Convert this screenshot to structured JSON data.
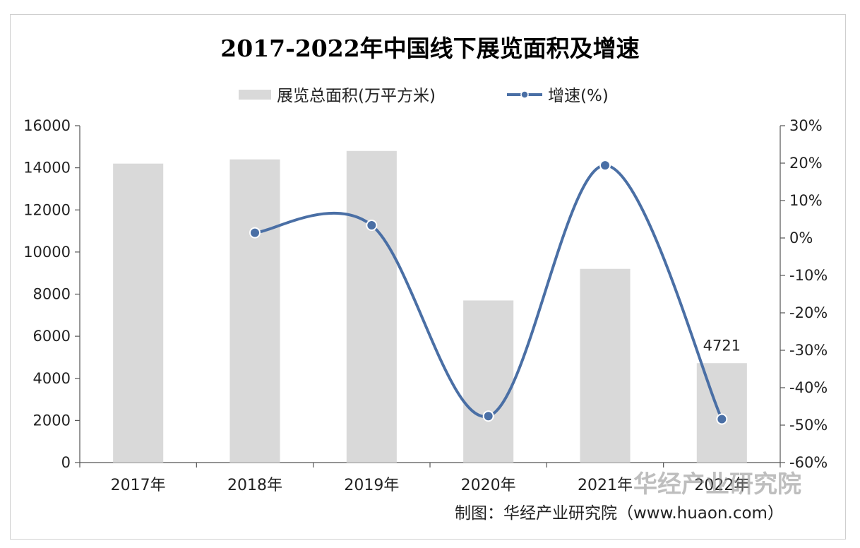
{
  "chart_data": {
    "type": "bar",
    "title": "2017-2022年中国线下展览面积及增速",
    "categories": [
      "2017年",
      "2018年",
      "2019年",
      "2020年",
      "2021年",
      "2022年"
    ],
    "series": [
      {
        "name": "展览总面积(万平方米)",
        "type": "bar",
        "axis": "left",
        "values": [
          14200,
          14400,
          14800,
          7700,
          9200,
          4721
        ]
      },
      {
        "name": "增速(%)",
        "type": "line",
        "axis": "right",
        "values": [
          null,
          1.4,
          3.4,
          -47.6,
          19.4,
          -48.4
        ]
      }
    ],
    "data_labels": [
      {
        "category": "2022年",
        "series": "展览总面积(万平方米)",
        "text": "4721"
      }
    ],
    "y_left": {
      "min": 0,
      "max": 16000,
      "ticks": [
        "16000",
        "14000",
        "12000",
        "10000",
        "8000",
        "6000",
        "4000",
        "2000",
        "0"
      ]
    },
    "y_right": {
      "min": -60,
      "max": 30,
      "ticks": [
        "30%",
        "20%",
        "10%",
        "0%",
        "-10%",
        "-20%",
        "-30%",
        "-40%",
        "-50%",
        "-60%"
      ]
    },
    "legend_position": "top-center",
    "grid": false
  },
  "source_text": "制图：华经产业研究院（www.huaon.com）",
  "watermark_text": "华经产业研究院",
  "colors": {
    "bar": "#d9d9d9",
    "line": "#4a6fa5",
    "axis": "#555555"
  }
}
